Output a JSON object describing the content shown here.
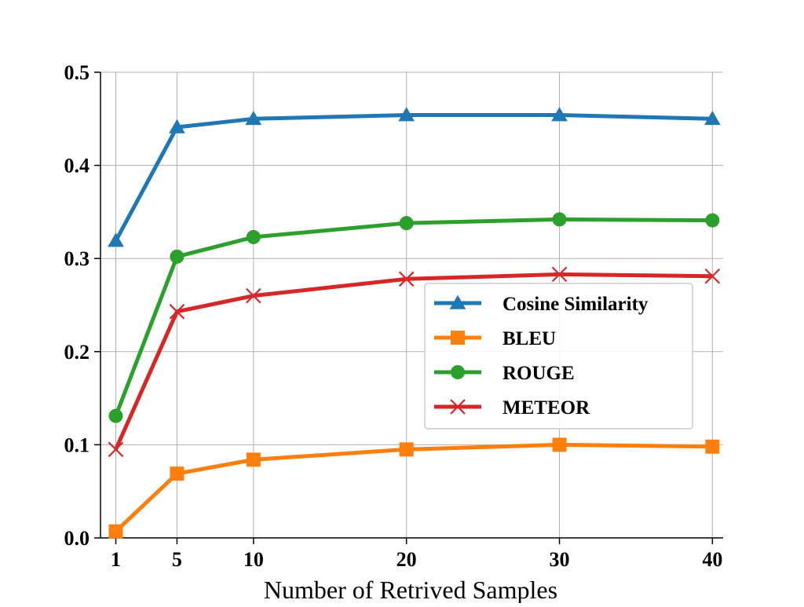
{
  "chart_data": {
    "type": "line",
    "title": "",
    "xlabel": "Number of Retrived Samples",
    "ylabel": "",
    "x": [
      1,
      5,
      10,
      20,
      30,
      40
    ],
    "xticks": [
      "1",
      "5",
      "10",
      "20",
      "30",
      "40"
    ],
    "yticks": [
      "0.0",
      "0.1",
      "0.2",
      "0.3",
      "0.4",
      "0.5"
    ],
    "xlim": [
      0,
      40.7
    ],
    "ylim": [
      0,
      0.5
    ],
    "grid": true,
    "legend_position": "center-right",
    "series": [
      {
        "name": "Cosine Similarity",
        "color": "#1f77b4",
        "marker": "triangle",
        "values": [
          0.319,
          0.441,
          0.45,
          0.454,
          0.454,
          0.45
        ]
      },
      {
        "name": "BLEU",
        "color": "#ff7f0e",
        "marker": "square",
        "values": [
          0.007,
          0.069,
          0.084,
          0.095,
          0.1,
          0.098
        ]
      },
      {
        "name": "ROUGE",
        "color": "#2ca02c",
        "marker": "circle",
        "values": [
          0.131,
          0.302,
          0.323,
          0.338,
          0.342,
          0.341
        ]
      },
      {
        "name": "METEOR",
        "color": "#d62728",
        "marker": "x",
        "values": [
          0.095,
          0.243,
          0.26,
          0.278,
          0.283,
          0.281
        ]
      }
    ]
  }
}
